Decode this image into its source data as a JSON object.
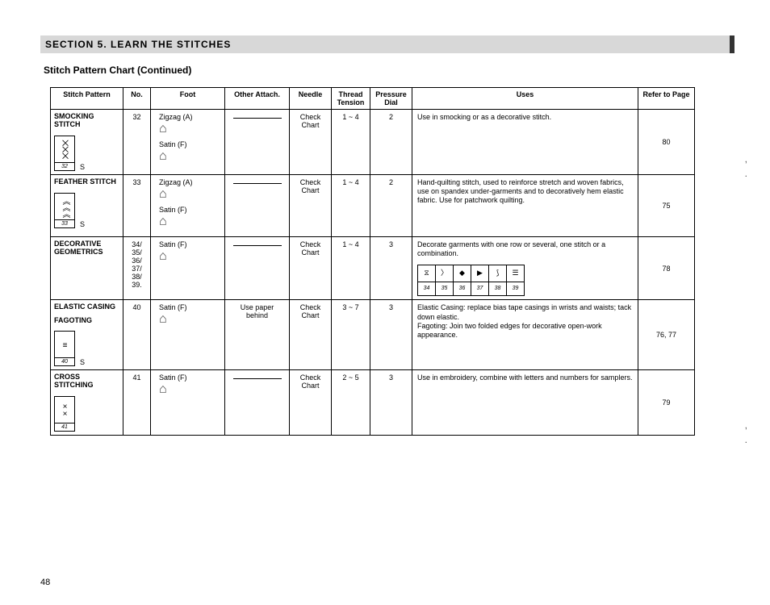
{
  "section_header": "SECTION 5.   LEARN THE STITCHES",
  "chart_title": "Stitch Pattern Chart  (Continued)",
  "page_number": "48",
  "columns": {
    "pattern": "Stitch\nPattern",
    "no": "No.",
    "foot": "Foot",
    "attach": "Other\nAttach.",
    "needle": "Needle",
    "tension": "Thread\nTension",
    "pressure": "Pressure\nDial",
    "uses": "Uses",
    "page": "Refer to Page"
  },
  "rows": [
    {
      "name": "SMOCKING STITCH",
      "icon_glyph": "⨉⨉⨉",
      "icon_num": "32",
      "s_mark": "S",
      "no": "32",
      "feet": [
        {
          "label": "Zigzag (A)",
          "glyph": "⌂"
        },
        {
          "label": "Satin (F)",
          "glyph": "⌂"
        }
      ],
      "attach": "",
      "needle": "Check\nChart",
      "tension": "1 ~ 4",
      "pressure": "2",
      "uses": "Use in smocking or as a decorative stitch.",
      "page": "80"
    },
    {
      "name": "FEATHER STITCH",
      "icon_glyph": "︽︽︽",
      "icon_num": "33",
      "s_mark": "S",
      "no": "33",
      "feet": [
        {
          "label": "Zigzag (A)",
          "glyph": "⌂"
        },
        {
          "label": "Satin (F)",
          "glyph": "⌂"
        }
      ],
      "attach": "",
      "needle": "Check\nChart",
      "tension": "1 ~ 4",
      "pressure": "2",
      "uses": "Hand-quilting stitch, used to reinforce stretch and woven fabrics, use on spandex under-garments and to decoratively hem elastic fabric.  Use for patchwork quilting.",
      "page": "75"
    },
    {
      "name": "DECORATIVE GEOMETRICS",
      "icon_glyph": "",
      "icon_num": "",
      "s_mark": "",
      "no": "34/\n35/\n36/\n37/\n38/\n39.",
      "feet": [
        {
          "label": "Satin (F)",
          "glyph": "⌂"
        }
      ],
      "attach": "",
      "needle": "Check\nChart",
      "tension": "1 ~ 4",
      "pressure": "3",
      "uses": "Decorate garments with one row or several, one stitch or a combination.",
      "page": "78",
      "decor_glyphs": [
        "⧖",
        "〉",
        "◆",
        "▶",
        "⟆",
        "☰"
      ],
      "decor_nums": [
        "34",
        "35",
        "36",
        "37",
        "38",
        "39"
      ]
    },
    {
      "name": "ELASTIC CASING",
      "sub": "FAGOTING",
      "icon_glyph": "≡",
      "icon_num": "40",
      "s_mark": "S",
      "no": "40",
      "feet": [
        {
          "label": "Satin (F)",
          "glyph": "⌂"
        }
      ],
      "attach": "Use paper\nbehind",
      "needle": "Check\nChart",
      "tension": "3 ~ 7",
      "pressure": "3",
      "uses": "Elastic Casing:  replace bias tape casings in wrists and waists; tack down elastic.\nFagoting:  Join two folded edges for decorative open-work appearance.",
      "page": "76, 77"
    },
    {
      "name": "CROSS STITCHING",
      "icon_glyph": "××",
      "icon_num": "41",
      "s_mark": "",
      "no": "41",
      "feet": [
        {
          "label": "Satin (F)",
          "glyph": "⌂"
        }
      ],
      "attach": "",
      "needle": "Check\nChart",
      "tension": "2 ~ 5",
      "pressure": "3",
      "uses": "Use in embroidery, combine with letters and numbers for samplers.",
      "page": "79"
    }
  ]
}
